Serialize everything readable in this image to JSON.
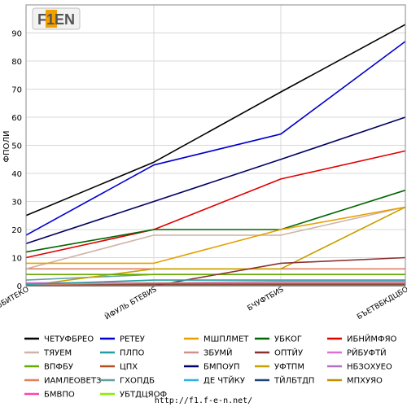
{
  "logo": {
    "text": "F1EN"
  },
  "source": "http://f1.f-e-n.net/",
  "chart_data": {
    "type": "line",
    "ylabel": "ФПОЛИ",
    "ylim": [
      0,
      100
    ],
    "yticks": [
      0,
      10,
      20,
      30,
      40,
      50,
      60,
      70,
      80,
      90
    ],
    "grid": true,
    "categories": [
      "ВБИТЕКО",
      "ЙФУЛЬ БТЕВИЅ",
      "БЧУФТБИЅ",
      "БЪЕТВБКДЦБО"
    ],
    "legend_position": "bottom",
    "series": [
      {
        "name": "ЧЕТУФБРЕО",
        "color": "#000000",
        "values": [
          25,
          44,
          69,
          93
        ]
      },
      {
        "name": "РЕТЕУ",
        "color": "#0000cc",
        "values": [
          18,
          43,
          54,
          87
        ]
      },
      {
        "name": "МШПЛМЕТ",
        "color": "#e6a000",
        "values": [
          8,
          8,
          20,
          28
        ]
      },
      {
        "name": "УБКОГ",
        "color": "#006600",
        "values": [
          12,
          20,
          20,
          34
        ]
      },
      {
        "name": "ИБНЙМФЯО",
        "color": "#e00000",
        "values": [
          10,
          20,
          38,
          48
        ]
      },
      {
        "name": "ТЯУЕМ",
        "color": "#d0b4a8",
        "values": [
          6,
          18,
          18,
          28
        ]
      },
      {
        "name": "ПЛПО",
        "color": "#20a0a0",
        "values": [
          0.5,
          2,
          2,
          2
        ]
      },
      {
        "name": "ЗБУМЙ",
        "color": "#d09090",
        "values": [
          0.5,
          1,
          1,
          1
        ]
      },
      {
        "name": "ОПТЙУ",
        "color": "#8b3030",
        "values": [
          0,
          0,
          8,
          10
        ]
      },
      {
        "name": "РЙБУФТЙ",
        "color": "#e070d0",
        "values": [
          1,
          1,
          1.5,
          1.5
        ]
      },
      {
        "name": "ВПФБУ",
        "color": "#66aa00",
        "values": [
          4,
          4,
          4,
          4
        ]
      },
      {
        "name": "ЦПХ",
        "color": "#b05020",
        "values": [
          0.3,
          0.3,
          0.3,
          0.3
        ]
      },
      {
        "name": "БМПОУП",
        "color": "#000066",
        "values": [
          15,
          30,
          45,
          60
        ]
      },
      {
        "name": "УФТПМ",
        "color": "#c8a000",
        "values": [
          0,
          6,
          6,
          28
        ]
      },
      {
        "name": "НБЗОХУЕО",
        "color": "#b070c0",
        "values": [
          1,
          1,
          1,
          1
        ]
      },
      {
        "name": "ИАМЛЕОВЕТЗ",
        "color": "#e08060",
        "values": [
          6,
          6,
          6,
          6
        ]
      },
      {
        "name": "ГХОПДБ",
        "color": "#60a0a0",
        "values": [
          2,
          4,
          4,
          4
        ]
      },
      {
        "name": "ДЕ ЧТЙКУ",
        "color": "#30b0e0",
        "values": [
          0,
          0,
          0,
          0
        ]
      },
      {
        "name": "ТЙЛБТДП",
        "color": "#204080",
        "values": [
          0.5,
          0.5,
          0.5,
          0.5
        ]
      },
      {
        "name": "МПХУЯО",
        "color": "#c09000",
        "values": [
          0,
          0,
          0,
          0
        ]
      },
      {
        "name": "БМВПО",
        "color": "#ff44aa",
        "values": [
          0,
          0,
          0,
          0
        ]
      },
      {
        "name": "УБТДЦЯОФ",
        "color": "#88ee00",
        "values": [
          0,
          0,
          0,
          0
        ]
      }
    ]
  }
}
